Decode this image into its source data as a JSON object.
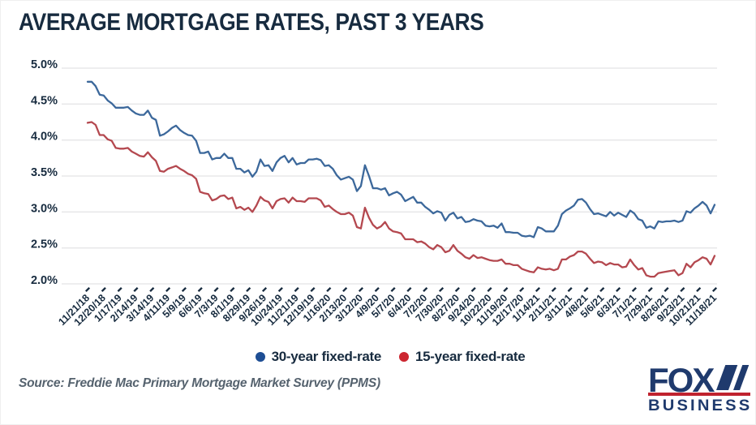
{
  "title": "AVERAGE MORTGAGE RATES, PAST 3 YEARS",
  "source": "Source: Freddie Mac Primary Mortgage Market Survey (PPMS)",
  "legend": [
    {
      "label": "30-year fixed-rate",
      "color": "#1e4e94"
    },
    {
      "label": "15-year fixed-rate",
      "color": "#cc2630"
    }
  ],
  "logo": {
    "line1": "FOX",
    "line2": "BUSINESS",
    "navy": "#1f3a6d",
    "red": "#c0222e"
  },
  "colors": {
    "text_navy": "#172b3f",
    "gridline": "#e8e8ea",
    "source_gray": "#55626e",
    "line_blue": "#3c689b",
    "line_red": "#b4484f"
  },
  "chart_data": {
    "type": "line",
    "title": "AVERAGE MORTGAGE RATES, PAST 3 YEARS",
    "ylabel": "",
    "xlabel": "",
    "ylim": [
      2.0,
      5.0
    ],
    "y_tick_labels": [
      "5.0%",
      "4.5%",
      "4.0%",
      "3.5%",
      "3.0%",
      "2.5%",
      "2.0%"
    ],
    "grid": "horizontal",
    "legend_position": "bottom",
    "points_per_tick": 4,
    "x_tick_labels": [
      "11/21/18",
      "12/20/18",
      "1/17/19",
      "2/14/19",
      "3/14/19",
      "4/11/19",
      "5/9/19",
      "6/6/19",
      "7/3/19",
      "8/1/19",
      "8/29/19",
      "9/26/19",
      "10/24/19",
      "11/21/19",
      "12/19/19",
      "1/16/20",
      "2/13/20",
      "3/12/20",
      "4/9/20",
      "5/7/20",
      "6/4/20",
      "7/2/20",
      "7/30/20",
      "8/27/20",
      "9/24/20",
      "10/22/20",
      "11/19/20",
      "12/17/20",
      "1/14/21",
      "2/11/21",
      "3/11/21",
      "4/8/21",
      "5/6/21",
      "6/3/21",
      "7/1/21",
      "7/29/21",
      "8/26/21",
      "9/23/21",
      "10/21/21",
      "11/18/21"
    ],
    "series": [
      {
        "name": "30-year fixed-rate",
        "color": "#3c689b",
        "values": [
          4.81,
          4.81,
          4.75,
          4.63,
          4.62,
          4.55,
          4.51,
          4.45,
          4.45,
          4.45,
          4.46,
          4.41,
          4.37,
          4.35,
          4.35,
          4.41,
          4.31,
          4.28,
          4.06,
          4.08,
          4.12,
          4.17,
          4.2,
          4.14,
          4.1,
          4.07,
          4.06,
          3.99,
          3.82,
          3.82,
          3.84,
          3.73,
          3.75,
          3.75,
          3.81,
          3.75,
          3.75,
          3.6,
          3.6,
          3.55,
          3.58,
          3.49,
          3.56,
          3.73,
          3.64,
          3.65,
          3.57,
          3.69,
          3.75,
          3.78,
          3.69,
          3.75,
          3.66,
          3.68,
          3.68,
          3.73,
          3.73,
          3.74,
          3.72,
          3.64,
          3.65,
          3.6,
          3.51,
          3.45,
          3.47,
          3.49,
          3.45,
          3.29,
          3.36,
          3.65,
          3.5,
          3.33,
          3.33,
          3.31,
          3.33,
          3.23,
          3.26,
          3.28,
          3.24,
          3.15,
          3.18,
          3.21,
          3.13,
          3.13,
          3.07,
          3.03,
          2.98,
          3.01,
          2.99,
          2.88,
          2.96,
          2.99,
          2.91,
          2.93,
          2.86,
          2.87,
          2.9,
          2.88,
          2.87,
          2.81,
          2.8,
          2.81,
          2.78,
          2.84,
          2.72,
          2.72,
          2.71,
          2.71,
          2.67,
          2.66,
          2.67,
          2.65,
          2.79,
          2.77,
          2.73,
          2.73,
          2.73,
          2.81,
          2.97,
          3.02,
          3.05,
          3.09,
          3.17,
          3.18,
          3.13,
          3.04,
          2.97,
          2.98,
          2.96,
          2.94,
          3.0,
          2.95,
          2.99,
          2.96,
          2.93,
          3.02,
          2.98,
          2.9,
          2.88,
          2.78,
          2.8,
          2.77,
          2.87,
          2.86,
          2.87,
          2.87,
          2.88,
          2.86,
          2.88,
          3.01,
          2.99,
          3.05,
          3.09,
          3.14,
          3.09,
          2.98,
          3.1
        ]
      },
      {
        "name": "15-year fixed-rate",
        "color": "#b4484f",
        "values": [
          4.24,
          4.25,
          4.21,
          4.07,
          4.07,
          4.01,
          3.99,
          3.89,
          3.88,
          3.88,
          3.89,
          3.84,
          3.81,
          3.78,
          3.77,
          3.83,
          3.76,
          3.71,
          3.57,
          3.56,
          3.6,
          3.62,
          3.64,
          3.6,
          3.57,
          3.53,
          3.51,
          3.46,
          3.28,
          3.26,
          3.25,
          3.16,
          3.18,
          3.22,
          3.23,
          3.18,
          3.2,
          3.05,
          3.07,
          3.03,
          3.06,
          3.0,
          3.09,
          3.21,
          3.16,
          3.14,
          3.05,
          3.15,
          3.18,
          3.19,
          3.13,
          3.2,
          3.15,
          3.15,
          3.14,
          3.19,
          3.19,
          3.19,
          3.16,
          3.07,
          3.09,
          3.04,
          3.0,
          2.97,
          2.97,
          2.99,
          2.95,
          2.79,
          2.77,
          3.06,
          2.92,
          2.82,
          2.77,
          2.8,
          2.86,
          2.77,
          2.73,
          2.72,
          2.7,
          2.62,
          2.62,
          2.62,
          2.58,
          2.59,
          2.56,
          2.51,
          2.48,
          2.54,
          2.51,
          2.44,
          2.46,
          2.54,
          2.46,
          2.42,
          2.37,
          2.35,
          2.4,
          2.36,
          2.37,
          2.35,
          2.33,
          2.32,
          2.32,
          2.34,
          2.28,
          2.28,
          2.26,
          2.26,
          2.21,
          2.19,
          2.17,
          2.16,
          2.23,
          2.21,
          2.2,
          2.21,
          2.19,
          2.21,
          2.34,
          2.34,
          2.38,
          2.4,
          2.45,
          2.45,
          2.42,
          2.35,
          2.29,
          2.31,
          2.3,
          2.26,
          2.29,
          2.27,
          2.27,
          2.23,
          2.24,
          2.34,
          2.26,
          2.2,
          2.22,
          2.12,
          2.1,
          2.1,
          2.15,
          2.16,
          2.17,
          2.18,
          2.19,
          2.12,
          2.15,
          2.28,
          2.23,
          2.3,
          2.33,
          2.37,
          2.35,
          2.27,
          2.39
        ]
      }
    ]
  }
}
